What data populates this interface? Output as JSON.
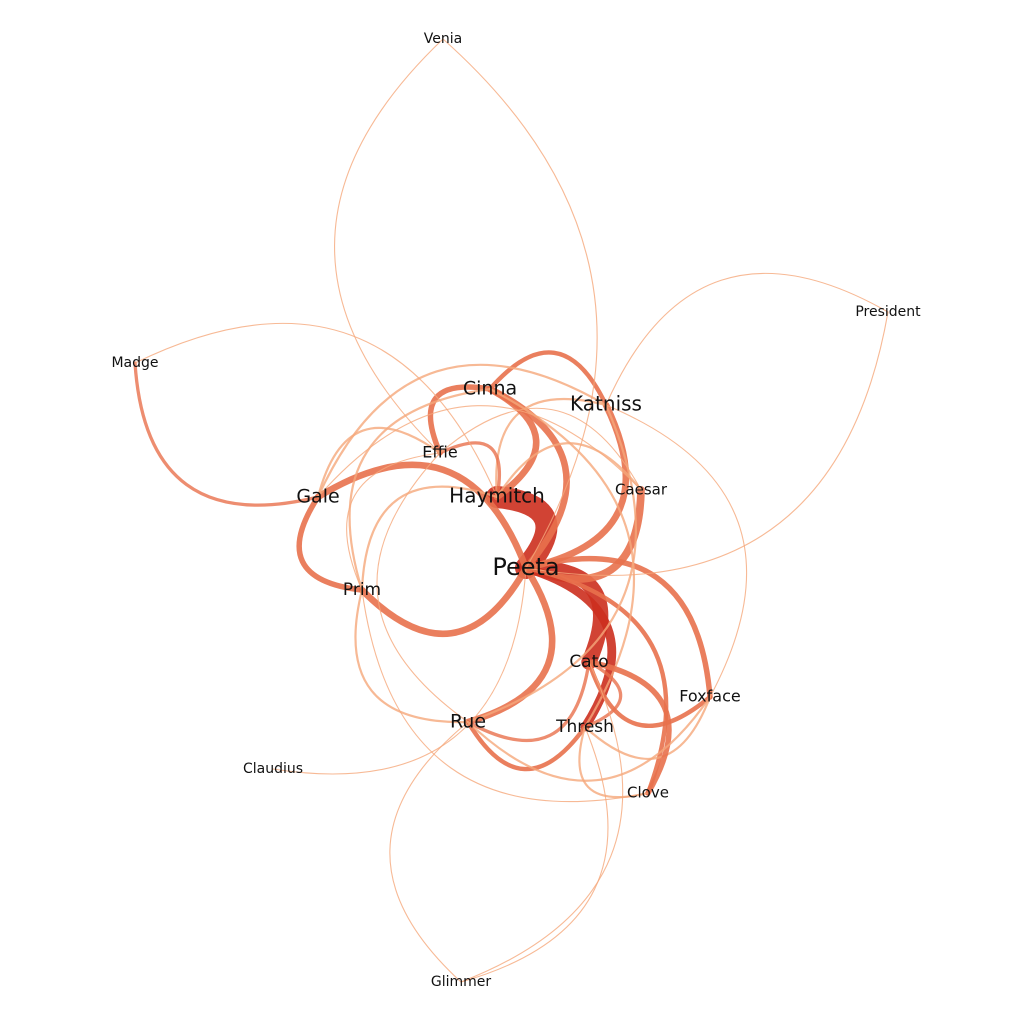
{
  "network": {
    "nodes": [
      {
        "id": "Peeta",
        "label": "Peeta",
        "degree": 10
      },
      {
        "id": "Katniss",
        "label": "Katniss",
        "degree": 6
      },
      {
        "id": "Haymitch",
        "label": "Haymitch",
        "degree": 6
      },
      {
        "id": "Cinna",
        "label": "Cinna",
        "degree": 5
      },
      {
        "id": "Gale",
        "label": "Gale",
        "degree": 5
      },
      {
        "id": "Prim",
        "label": "Prim",
        "degree": 4
      },
      {
        "id": "Rue",
        "label": "Rue",
        "degree": 5
      },
      {
        "id": "Thresh",
        "label": "Thresh",
        "degree": 4
      },
      {
        "id": "Cato",
        "label": "Cato",
        "degree": 4
      },
      {
        "id": "Foxface",
        "label": "Foxface",
        "degree": 3
      },
      {
        "id": "Effie",
        "label": "Effie",
        "degree": 3
      },
      {
        "id": "Caesar",
        "label": "Caesar",
        "degree": 2
      },
      {
        "id": "Clove",
        "label": "Clove",
        "degree": 2
      },
      {
        "id": "Madge",
        "label": "Madge",
        "degree": 1
      },
      {
        "id": "President",
        "label": "President",
        "degree": 1
      },
      {
        "id": "Claudius",
        "label": "Claudius",
        "degree": 1
      },
      {
        "id": "Venia",
        "label": "Venia",
        "degree": 1
      },
      {
        "id": "Glimmer",
        "label": "Glimmer",
        "degree": 1
      }
    ],
    "edges": [
      {
        "source": "Peeta",
        "target": "Haymitch",
        "weight": 20
      },
      {
        "source": "Peeta",
        "target": "Cato",
        "weight": 14
      },
      {
        "source": "Peeta",
        "target": "Katniss",
        "weight": 6
      },
      {
        "source": "Peeta",
        "target": "Caesar",
        "weight": 7
      },
      {
        "source": "Peeta",
        "target": "Thresh",
        "weight": 8
      },
      {
        "source": "Peeta",
        "target": "Gale",
        "weight": 6
      },
      {
        "source": "Peeta",
        "target": "Prim",
        "weight": 6
      },
      {
        "source": "Peeta",
        "target": "Rue",
        "weight": 6
      },
      {
        "source": "Peeta",
        "target": "Foxface",
        "weight": 5
      },
      {
        "source": "Peeta",
        "target": "Cinna",
        "weight": 6
      },
      {
        "source": "Peeta",
        "target": "Clove",
        "weight": 4
      },
      {
        "source": "Katniss",
        "target": "Cinna",
        "weight": 4
      },
      {
        "source": "Katniss",
        "target": "Gale",
        "weight": 2
      },
      {
        "source": "Katniss",
        "target": "Haymitch",
        "weight": 2
      },
      {
        "source": "Katniss",
        "target": "Rue",
        "weight": 2
      },
      {
        "source": "Haymitch",
        "target": "Cinna",
        "weight": 6
      },
      {
        "source": "Haymitch",
        "target": "Effie",
        "weight": 3
      },
      {
        "source": "Haymitch",
        "target": "Prim",
        "weight": 2
      },
      {
        "source": "Haymitch",
        "target": "Caesar",
        "weight": 2
      },
      {
        "source": "Cinna",
        "target": "Effie",
        "weight": 5
      },
      {
        "source": "Cinna",
        "target": "Prim",
        "weight": 2
      },
      {
        "source": "Cinna",
        "target": "Thresh",
        "weight": 2
      },
      {
        "source": "Gale",
        "target": "Prim",
        "weight": 5
      },
      {
        "source": "Gale",
        "target": "Madge",
        "weight": 3
      },
      {
        "source": "Gale",
        "target": "Effie",
        "weight": 2
      },
      {
        "source": "Gale",
        "target": "Caesar",
        "weight": 1
      },
      {
        "source": "Prim",
        "target": "Rue",
        "weight": 2
      },
      {
        "source": "Prim",
        "target": "Effie",
        "weight": 1
      },
      {
        "source": "Rue",
        "target": "Thresh",
        "weight": 4
      },
      {
        "source": "Rue",
        "target": "Cato",
        "weight": 3
      },
      {
        "source": "Rue",
        "target": "Glimmer",
        "weight": 1
      },
      {
        "source": "Rue",
        "target": "Effie",
        "weight": 1
      },
      {
        "source": "Thresh",
        "target": "Cato",
        "weight": 3
      },
      {
        "source": "Thresh",
        "target": "Foxface",
        "weight": 2
      },
      {
        "source": "Thresh",
        "target": "Clove",
        "weight": 2
      },
      {
        "source": "Thresh",
        "target": "Glimmer",
        "weight": 1
      },
      {
        "source": "Cato",
        "target": "Clove",
        "weight": 5
      },
      {
        "source": "Cato",
        "target": "Foxface",
        "weight": 4
      },
      {
        "source": "Cato",
        "target": "Glimmer",
        "weight": 1
      },
      {
        "source": "Foxface",
        "target": "Katniss",
        "weight": 1
      },
      {
        "source": "Foxface",
        "target": "Rue",
        "weight": 2
      },
      {
        "source": "Effie",
        "target": "Venia",
        "weight": 1
      },
      {
        "source": "Effie",
        "target": "Caesar",
        "weight": 1
      },
      {
        "source": "Haymitch",
        "target": "Madge",
        "weight": 1
      },
      {
        "source": "Katniss",
        "target": "President",
        "weight": 1
      },
      {
        "source": "Peeta",
        "target": "President",
        "weight": 1
      },
      {
        "source": "Peeta",
        "target": "Claudius",
        "weight": 1
      },
      {
        "source": "Peeta",
        "target": "Venia",
        "weight": 1
      },
      {
        "source": "Clove",
        "target": "Prim",
        "weight": 1
      }
    ],
    "colors": {
      "edge_light": "#f5a77a",
      "edge_mid": "#e8714c",
      "edge_dark": "#cc2f1e",
      "label": "#111111",
      "background": "#ffffff"
    }
  }
}
